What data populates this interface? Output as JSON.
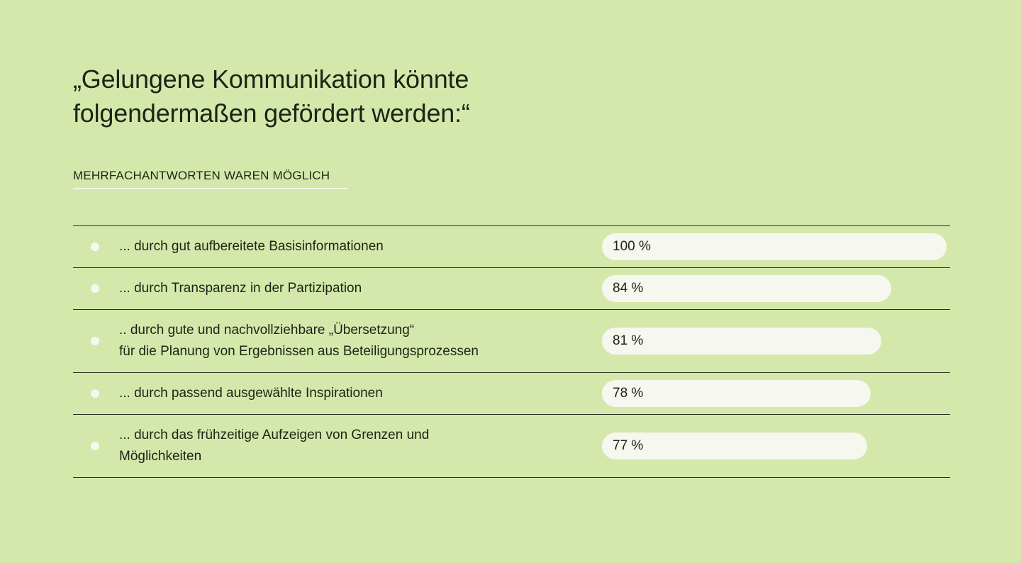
{
  "chart_data": {
    "type": "bar",
    "title": "„Gelungene Kommunikation könnte\nfolgendermaßen gefördert werden:“",
    "subtitle": "MEHRFACHANTWORTEN WAREN MÖGLICH",
    "categories": [
      "... durch gut aufbereitete Basisinformationen",
      "... durch Transparenz in der Partizipation",
      ".. durch gute und nachvollziehbare „Übersetzung“\nfür die Planung von Ergebnissen aus Beteiligungsprozessen",
      "... durch passend ausgewählte Inspirationen",
      "... durch das frühzeitige Aufzeigen von Grenzen und\nMöglichkeiten"
    ],
    "values": [
      100,
      84,
      81,
      78,
      77
    ],
    "value_labels": [
      "100 %",
      "84 %",
      "81 %",
      "78 %",
      "77 %"
    ],
    "xlim": [
      0,
      100
    ],
    "color": "#f6f7ee"
  }
}
